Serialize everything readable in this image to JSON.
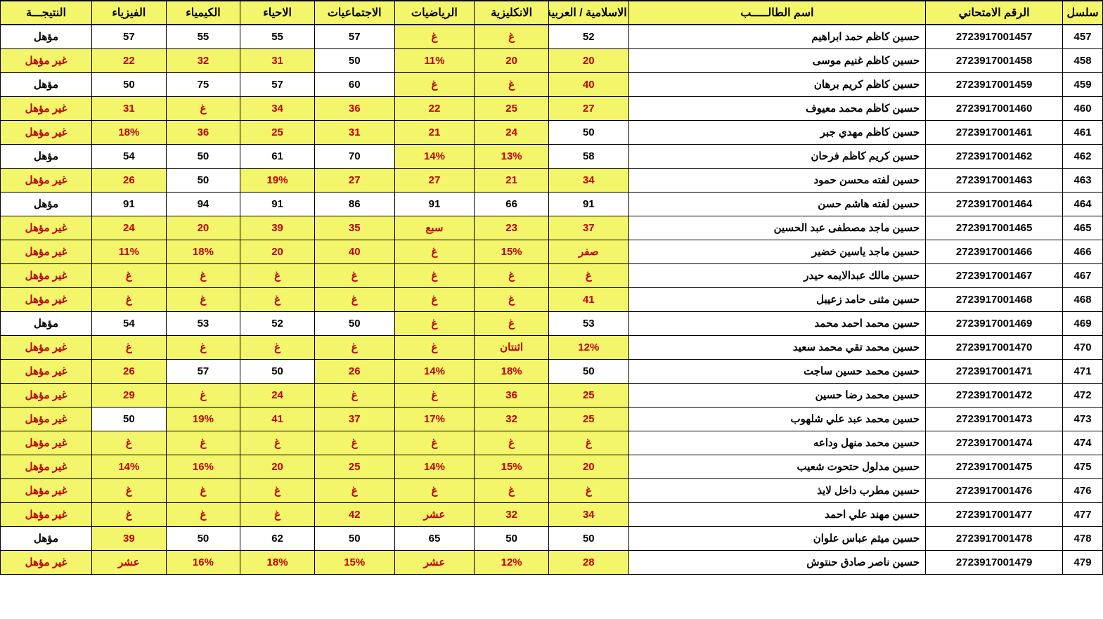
{
  "colors": {
    "highlight": "#f3f56a",
    "fail": "#c00000",
    "border": "#000000",
    "bg": "#ffffff"
  },
  "columns": [
    {
      "key": "seq",
      "label": "سلسل",
      "width": "3.5%"
    },
    {
      "key": "exam_no",
      "label": "الرقم الامتحاني",
      "width": "12%"
    },
    {
      "key": "name",
      "label": "اسم الطالـــــب",
      "width": "26%"
    },
    {
      "key": "islamic",
      "label": "الاسلامية / العربية",
      "width": "7%"
    },
    {
      "key": "english",
      "label": "الانكليزية",
      "width": "6.5%"
    },
    {
      "key": "math",
      "label": "الرياضيات",
      "width": "7%"
    },
    {
      "key": "social",
      "label": "الاجتماعيات",
      "width": "7%"
    },
    {
      "key": "biology",
      "label": "الاحياء",
      "width": "6.5%"
    },
    {
      "key": "chemistry",
      "label": "الكيمياء",
      "width": "6.5%"
    },
    {
      "key": "physics",
      "label": "الفيزياء",
      "width": "6.5%"
    },
    {
      "key": "result",
      "label": "النتيجـــة",
      "width": "8%"
    }
  ],
  "rows": [
    {
      "seq": "457",
      "exam_no": "2723917001457",
      "name": "حسين كاظم حمد ابراهيم",
      "cells": [
        {
          "v": "52"
        },
        {
          "v": "غ",
          "hl": 1,
          "f": 1
        },
        {
          "v": "غ",
          "hl": 1,
          "f": 1
        },
        {
          "v": "57"
        },
        {
          "v": "55"
        },
        {
          "v": "55"
        },
        {
          "v": "57"
        }
      ],
      "result": {
        "v": "مؤهل"
      }
    },
    {
      "seq": "458",
      "exam_no": "2723917001458",
      "name": "حسين كاظم غنيم موسى",
      "cells": [
        {
          "v": "20",
          "hl": 1,
          "f": 1
        },
        {
          "v": "20",
          "hl": 1,
          "f": 1
        },
        {
          "v": "11%",
          "hl": 1,
          "f": 1
        },
        {
          "v": "50"
        },
        {
          "v": "31",
          "hl": 1,
          "f": 1
        },
        {
          "v": "32",
          "hl": 1,
          "f": 1
        },
        {
          "v": "22",
          "hl": 1,
          "f": 1
        }
      ],
      "result": {
        "v": "غير مؤهل",
        "hl": 1,
        "f": 1
      }
    },
    {
      "seq": "459",
      "exam_no": "2723917001459",
      "name": "حسين كاظم كريم برهان",
      "cells": [
        {
          "v": "40",
          "hl": 1,
          "f": 1
        },
        {
          "v": "غ",
          "hl": 1,
          "f": 1
        },
        {
          "v": "غ",
          "hl": 1,
          "f": 1
        },
        {
          "v": "60"
        },
        {
          "v": "57"
        },
        {
          "v": "75"
        },
        {
          "v": "50"
        }
      ],
      "result": {
        "v": "مؤهل"
      }
    },
    {
      "seq": "460",
      "exam_no": "2723917001460",
      "name": "حسين كاظم محمد معيوف",
      "cells": [
        {
          "v": "27",
          "hl": 1,
          "f": 1
        },
        {
          "v": "25",
          "hl": 1,
          "f": 1
        },
        {
          "v": "22",
          "hl": 1,
          "f": 1
        },
        {
          "v": "36",
          "hl": 1,
          "f": 1
        },
        {
          "v": "34",
          "hl": 1,
          "f": 1
        },
        {
          "v": "غ",
          "hl": 1,
          "f": 1
        },
        {
          "v": "31",
          "hl": 1,
          "f": 1
        }
      ],
      "result": {
        "v": "غير مؤهل",
        "hl": 1,
        "f": 1
      }
    },
    {
      "seq": "461",
      "exam_no": "2723917001461",
      "name": "حسين كاظم مهدي جبر",
      "cells": [
        {
          "v": "50"
        },
        {
          "v": "24",
          "hl": 1,
          "f": 1
        },
        {
          "v": "21",
          "hl": 1,
          "f": 1
        },
        {
          "v": "31",
          "hl": 1,
          "f": 1
        },
        {
          "v": "25",
          "hl": 1,
          "f": 1
        },
        {
          "v": "36",
          "hl": 1,
          "f": 1
        },
        {
          "v": "18%",
          "hl": 1,
          "f": 1
        }
      ],
      "result": {
        "v": "غير مؤهل",
        "hl": 1,
        "f": 1
      }
    },
    {
      "seq": "462",
      "exam_no": "2723917001462",
      "name": "حسين كريم كاظم فرحان",
      "cells": [
        {
          "v": "58"
        },
        {
          "v": "13%",
          "hl": 1,
          "f": 1
        },
        {
          "v": "14%",
          "hl": 1,
          "f": 1
        },
        {
          "v": "70"
        },
        {
          "v": "61"
        },
        {
          "v": "50"
        },
        {
          "v": "54"
        }
      ],
      "result": {
        "v": "مؤهل"
      }
    },
    {
      "seq": "463",
      "exam_no": "2723917001463",
      "name": "حسين لفته محسن حمود",
      "cells": [
        {
          "v": "34",
          "hl": 1,
          "f": 1
        },
        {
          "v": "21",
          "hl": 1,
          "f": 1
        },
        {
          "v": "27",
          "hl": 1,
          "f": 1
        },
        {
          "v": "27",
          "hl": 1,
          "f": 1
        },
        {
          "v": "19%",
          "hl": 1,
          "f": 1
        },
        {
          "v": "50"
        },
        {
          "v": "26",
          "hl": 1,
          "f": 1
        }
      ],
      "result": {
        "v": "غير مؤهل",
        "hl": 1,
        "f": 1
      }
    },
    {
      "seq": "464",
      "exam_no": "2723917001464",
      "name": "حسين لفته هاشم حسن",
      "cells": [
        {
          "v": "91"
        },
        {
          "v": "66"
        },
        {
          "v": "91"
        },
        {
          "v": "86"
        },
        {
          "v": "91"
        },
        {
          "v": "94"
        },
        {
          "v": "91"
        }
      ],
      "result": {
        "v": "مؤهل"
      }
    },
    {
      "seq": "465",
      "exam_no": "2723917001465",
      "name": "حسين ماجد مصطفى عبد الحسين",
      "cells": [
        {
          "v": "37",
          "hl": 1,
          "f": 1
        },
        {
          "v": "23",
          "hl": 1,
          "f": 1
        },
        {
          "v": "سبع",
          "hl": 1,
          "f": 1
        },
        {
          "v": "35",
          "hl": 1,
          "f": 1
        },
        {
          "v": "39",
          "hl": 1,
          "f": 1
        },
        {
          "v": "20",
          "hl": 1,
          "f": 1
        },
        {
          "v": "24",
          "hl": 1,
          "f": 1
        }
      ],
      "result": {
        "v": "غير مؤهل",
        "hl": 1,
        "f": 1
      }
    },
    {
      "seq": "466",
      "exam_no": "2723917001466",
      "name": "حسين ماجد ياسين خضير",
      "cells": [
        {
          "v": "صفر",
          "hl": 1,
          "f": 1
        },
        {
          "v": "15%",
          "hl": 1,
          "f": 1
        },
        {
          "v": "غ",
          "hl": 1,
          "f": 1
        },
        {
          "v": "40",
          "hl": 1,
          "f": 1
        },
        {
          "v": "20",
          "hl": 1,
          "f": 1
        },
        {
          "v": "18%",
          "hl": 1,
          "f": 1
        },
        {
          "v": "11%",
          "hl": 1,
          "f": 1
        }
      ],
      "result": {
        "v": "غير مؤهل",
        "hl": 1,
        "f": 1
      }
    },
    {
      "seq": "467",
      "exam_no": "2723917001467",
      "name": "حسين مالك عبدالايمه حيدر",
      "cells": [
        {
          "v": "غ",
          "hl": 1,
          "f": 1
        },
        {
          "v": "غ",
          "hl": 1,
          "f": 1
        },
        {
          "v": "غ",
          "hl": 1,
          "f": 1
        },
        {
          "v": "غ",
          "hl": 1,
          "f": 1
        },
        {
          "v": "غ",
          "hl": 1,
          "f": 1
        },
        {
          "v": "غ",
          "hl": 1,
          "f": 1
        },
        {
          "v": "غ",
          "hl": 1,
          "f": 1
        }
      ],
      "result": {
        "v": "غير مؤهل",
        "hl": 1,
        "f": 1
      }
    },
    {
      "seq": "468",
      "exam_no": "2723917001468",
      "name": "حسين مثنى حامد زعيبل",
      "cells": [
        {
          "v": "41",
          "hl": 1,
          "f": 1
        },
        {
          "v": "غ",
          "hl": 1,
          "f": 1
        },
        {
          "v": "غ",
          "hl": 1,
          "f": 1
        },
        {
          "v": "غ",
          "hl": 1,
          "f": 1
        },
        {
          "v": "غ",
          "hl": 1,
          "f": 1
        },
        {
          "v": "غ",
          "hl": 1,
          "f": 1
        },
        {
          "v": "غ",
          "hl": 1,
          "f": 1
        }
      ],
      "result": {
        "v": "غير مؤهل",
        "hl": 1,
        "f": 1
      }
    },
    {
      "seq": "469",
      "exam_no": "2723917001469",
      "name": "حسين محمد احمد محمد",
      "cells": [
        {
          "v": "53"
        },
        {
          "v": "غ",
          "hl": 1,
          "f": 1
        },
        {
          "v": "غ",
          "hl": 1,
          "f": 1
        },
        {
          "v": "50"
        },
        {
          "v": "52"
        },
        {
          "v": "53"
        },
        {
          "v": "54"
        }
      ],
      "result": {
        "v": "مؤهل"
      }
    },
    {
      "seq": "470",
      "exam_no": "2723917001470",
      "name": "حسين محمد تقي محمد سعيد",
      "cells": [
        {
          "v": "12%",
          "hl": 1,
          "f": 1
        },
        {
          "v": "اثنتان",
          "hl": 1,
          "f": 1
        },
        {
          "v": "غ",
          "hl": 1,
          "f": 1
        },
        {
          "v": "غ",
          "hl": 1,
          "f": 1
        },
        {
          "v": "غ",
          "hl": 1,
          "f": 1
        },
        {
          "v": "غ",
          "hl": 1,
          "f": 1
        },
        {
          "v": "غ",
          "hl": 1,
          "f": 1
        }
      ],
      "result": {
        "v": "غير مؤهل",
        "hl": 1,
        "f": 1
      }
    },
    {
      "seq": "471",
      "exam_no": "2723917001471",
      "name": "حسين محمد حسين ساجت",
      "cells": [
        {
          "v": "50"
        },
        {
          "v": "18%",
          "hl": 1,
          "f": 1
        },
        {
          "v": "14%",
          "hl": 1,
          "f": 1
        },
        {
          "v": "26",
          "hl": 1,
          "f": 1
        },
        {
          "v": "50"
        },
        {
          "v": "57"
        },
        {
          "v": "26",
          "hl": 1,
          "f": 1
        }
      ],
      "result": {
        "v": "غير مؤهل",
        "hl": 1,
        "f": 1
      }
    },
    {
      "seq": "472",
      "exam_no": "2723917001472",
      "name": "حسين محمد رضا حسين",
      "cells": [
        {
          "v": "25",
          "hl": 1,
          "f": 1
        },
        {
          "v": "36",
          "hl": 1,
          "f": 1
        },
        {
          "v": "غ",
          "hl": 1,
          "f": 1
        },
        {
          "v": "غ",
          "hl": 1,
          "f": 1
        },
        {
          "v": "24",
          "hl": 1,
          "f": 1
        },
        {
          "v": "غ",
          "hl": 1,
          "f": 1
        },
        {
          "v": "29",
          "hl": 1,
          "f": 1
        }
      ],
      "result": {
        "v": "غير مؤهل",
        "hl": 1,
        "f": 1
      }
    },
    {
      "seq": "473",
      "exam_no": "2723917001473",
      "name": "حسين محمد عبد علي شلهوب",
      "cells": [
        {
          "v": "25",
          "hl": 1,
          "f": 1
        },
        {
          "v": "32",
          "hl": 1,
          "f": 1
        },
        {
          "v": "17%",
          "hl": 1,
          "f": 1
        },
        {
          "v": "37",
          "hl": 1,
          "f": 1
        },
        {
          "v": "41",
          "hl": 1,
          "f": 1
        },
        {
          "v": "19%",
          "hl": 1,
          "f": 1
        },
        {
          "v": "50"
        }
      ],
      "result": {
        "v": "غير مؤهل",
        "hl": 1,
        "f": 1
      }
    },
    {
      "seq": "474",
      "exam_no": "2723917001474",
      "name": "حسين محمد منهل وداعه",
      "cells": [
        {
          "v": "غ",
          "hl": 1,
          "f": 1
        },
        {
          "v": "غ",
          "hl": 1,
          "f": 1
        },
        {
          "v": "غ",
          "hl": 1,
          "f": 1
        },
        {
          "v": "غ",
          "hl": 1,
          "f": 1
        },
        {
          "v": "غ",
          "hl": 1,
          "f": 1
        },
        {
          "v": "غ",
          "hl": 1,
          "f": 1
        },
        {
          "v": "غ",
          "hl": 1,
          "f": 1
        }
      ],
      "result": {
        "v": "غير مؤهل",
        "hl": 1,
        "f": 1
      }
    },
    {
      "seq": "475",
      "exam_no": "2723917001475",
      "name": "حسين مدلول حتحوت شعيب",
      "cells": [
        {
          "v": "20",
          "hl": 1,
          "f": 1
        },
        {
          "v": "15%",
          "hl": 1,
          "f": 1
        },
        {
          "v": "14%",
          "hl": 1,
          "f": 1
        },
        {
          "v": "25",
          "hl": 1,
          "f": 1
        },
        {
          "v": "20",
          "hl": 1,
          "f": 1
        },
        {
          "v": "16%",
          "hl": 1,
          "f": 1
        },
        {
          "v": "14%",
          "hl": 1,
          "f": 1
        }
      ],
      "result": {
        "v": "غير مؤهل",
        "hl": 1,
        "f": 1
      }
    },
    {
      "seq": "476",
      "exam_no": "2723917001476",
      "name": "حسين مطرب داخل لايذ",
      "cells": [
        {
          "v": "غ",
          "hl": 1,
          "f": 1
        },
        {
          "v": "غ",
          "hl": 1,
          "f": 1
        },
        {
          "v": "غ",
          "hl": 1,
          "f": 1
        },
        {
          "v": "غ",
          "hl": 1,
          "f": 1
        },
        {
          "v": "غ",
          "hl": 1,
          "f": 1
        },
        {
          "v": "غ",
          "hl": 1,
          "f": 1
        },
        {
          "v": "غ",
          "hl": 1,
          "f": 1
        }
      ],
      "result": {
        "v": "غير مؤهل",
        "hl": 1,
        "f": 1
      }
    },
    {
      "seq": "477",
      "exam_no": "2723917001477",
      "name": "حسين مهند علي احمد",
      "cells": [
        {
          "v": "34",
          "hl": 1,
          "f": 1
        },
        {
          "v": "32",
          "hl": 1,
          "f": 1
        },
        {
          "v": "عشر",
          "hl": 1,
          "f": 1
        },
        {
          "v": "42",
          "hl": 1,
          "f": 1
        },
        {
          "v": "غ",
          "hl": 1,
          "f": 1
        },
        {
          "v": "غ",
          "hl": 1,
          "f": 1
        },
        {
          "v": "غ",
          "hl": 1,
          "f": 1
        }
      ],
      "result": {
        "v": "غير مؤهل",
        "hl": 1,
        "f": 1
      }
    },
    {
      "seq": "478",
      "exam_no": "2723917001478",
      "name": "حسين ميثم عباس علوان",
      "cells": [
        {
          "v": "50"
        },
        {
          "v": "50"
        },
        {
          "v": "65"
        },
        {
          "v": "50"
        },
        {
          "v": "62"
        },
        {
          "v": "50"
        },
        {
          "v": "39",
          "hl": 1,
          "f": 1
        }
      ],
      "result": {
        "v": "مؤهل"
      }
    },
    {
      "seq": "479",
      "exam_no": "2723917001479",
      "name": "حسين ناصر صادق حنتوش",
      "cells": [
        {
          "v": "28",
          "hl": 1,
          "f": 1
        },
        {
          "v": "12%",
          "hl": 1,
          "f": 1
        },
        {
          "v": "عشر",
          "hl": 1,
          "f": 1
        },
        {
          "v": "15%",
          "hl": 1,
          "f": 1
        },
        {
          "v": "18%",
          "hl": 1,
          "f": 1
        },
        {
          "v": "16%",
          "hl": 1,
          "f": 1
        },
        {
          "v": "عشر",
          "hl": 1,
          "f": 1
        }
      ],
      "result": {
        "v": "غير مؤهل",
        "hl": 1,
        "f": 1
      }
    }
  ]
}
